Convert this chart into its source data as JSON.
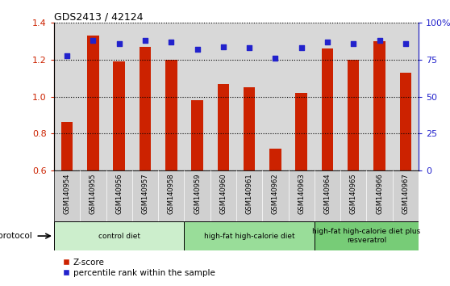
{
  "title": "GDS2413 / 42124",
  "samples": [
    "GSM140954",
    "GSM140955",
    "GSM140956",
    "GSM140957",
    "GSM140958",
    "GSM140959",
    "GSM140960",
    "GSM140961",
    "GSM140962",
    "GSM140963",
    "GSM140964",
    "GSM140965",
    "GSM140966",
    "GSM140967"
  ],
  "z_scores": [
    0.865,
    1.33,
    1.19,
    1.27,
    1.2,
    0.98,
    1.07,
    1.05,
    0.72,
    1.02,
    1.26,
    1.2,
    1.3,
    1.13
  ],
  "percentile_ranks": [
    78,
    88,
    86,
    88,
    87,
    82,
    84,
    83,
    76,
    83,
    87,
    86,
    88,
    86
  ],
  "bar_color": "#cc2200",
  "dot_color": "#2222cc",
  "ylim_left": [
    0.6,
    1.4
  ],
  "ylim_right": [
    0,
    100
  ],
  "yticks_left": [
    0.6,
    0.8,
    1.0,
    1.2,
    1.4
  ],
  "yticks_right": [
    0,
    25,
    50,
    75,
    100
  ],
  "ytick_labels_right": [
    "0",
    "25",
    "50",
    "75",
    "100%"
  ],
  "groups": [
    {
      "label": "control diet",
      "start": 0,
      "end": 4,
      "color": "#cceecc"
    },
    {
      "label": "high-fat high-calorie diet",
      "start": 5,
      "end": 9,
      "color": "#99dd99"
    },
    {
      "label": "high-fat high-calorie diet plus\nresveratrol",
      "start": 10,
      "end": 13,
      "color": "#77cc77"
    }
  ],
  "protocol_label": "protocol",
  "legend_bar_label": "Z-score",
  "legend_dot_label": "percentile rank within the sample"
}
